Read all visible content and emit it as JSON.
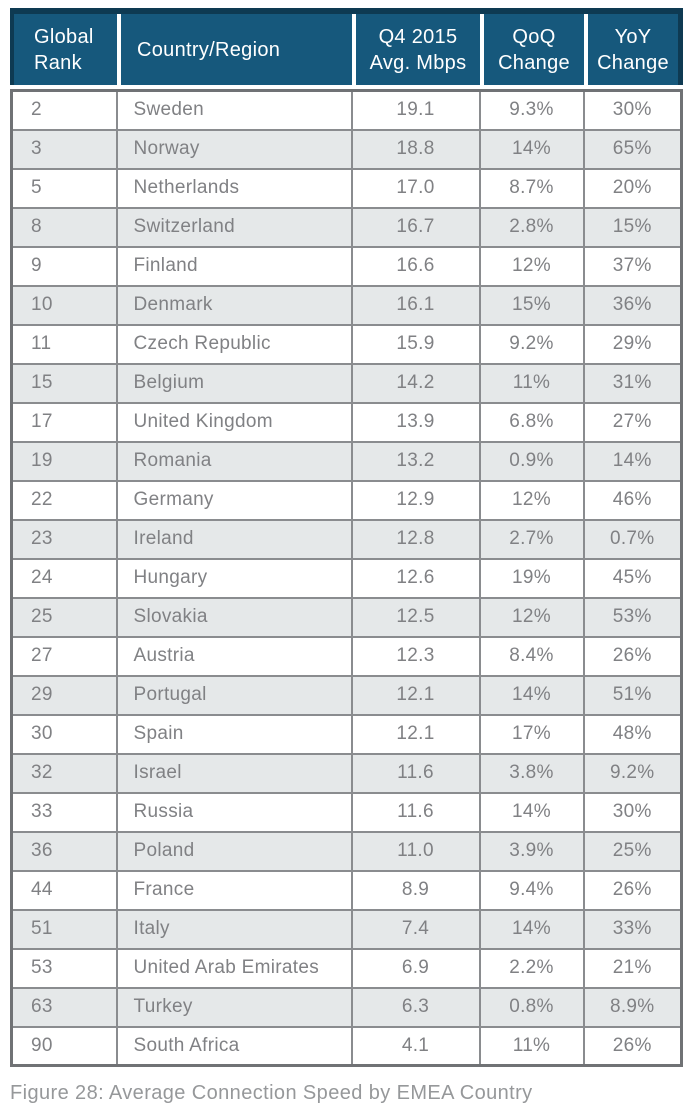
{
  "chart_data": {
    "type": "table",
    "title": "Figure 28: Average Connection Speed by EMEA Country",
    "columns": [
      "Global Rank",
      "Country/Region",
      "Q4 2015 Avg. Mbps",
      "QoQ Change",
      "YoY Change"
    ],
    "col_aligns": [
      "left",
      "left",
      "center",
      "center",
      "center"
    ],
    "rows": [
      [
        "2",
        "Sweden",
        "19.1",
        "9.3%",
        "30%"
      ],
      [
        "3",
        "Norway",
        "18.8",
        "14%",
        "65%"
      ],
      [
        "5",
        "Netherlands",
        "17.0",
        "8.7%",
        "20%"
      ],
      [
        "8",
        "Switzerland",
        "16.7",
        "2.8%",
        "15%"
      ],
      [
        "9",
        "Finland",
        "16.6",
        "12%",
        "37%"
      ],
      [
        "10",
        "Denmark",
        "16.1",
        "15%",
        "36%"
      ],
      [
        "11",
        "Czech Republic",
        "15.9",
        "9.2%",
        "29%"
      ],
      [
        "15",
        "Belgium",
        "14.2",
        "11%",
        "31%"
      ],
      [
        "17",
        "United Kingdom",
        "13.9",
        "6.8%",
        "27%"
      ],
      [
        "19",
        "Romania",
        "13.2",
        "0.9%",
        "14%"
      ],
      [
        "22",
        "Germany",
        "12.9",
        "12%",
        "46%"
      ],
      [
        "23",
        "Ireland",
        "12.8",
        "2.7%",
        "0.7%"
      ],
      [
        "24",
        "Hungary",
        "12.6",
        "19%",
        "45%"
      ],
      [
        "25",
        "Slovakia",
        "12.5",
        "12%",
        "53%"
      ],
      [
        "27",
        "Austria",
        "12.3",
        "8.4%",
        "26%"
      ],
      [
        "29",
        "Portugal",
        "12.1",
        "14%",
        "51%"
      ],
      [
        "30",
        "Spain",
        "12.1",
        "17%",
        "48%"
      ],
      [
        "32",
        "Israel",
        "11.6",
        "3.8%",
        "9.2%"
      ],
      [
        "33",
        "Russia",
        "11.6",
        "14%",
        "30%"
      ],
      [
        "36",
        "Poland",
        "11.0",
        "3.9%",
        "25%"
      ],
      [
        "44",
        "France",
        "8.9",
        "9.4%",
        "26%"
      ],
      [
        "51",
        "Italy",
        "7.4",
        "14%",
        "33%"
      ],
      [
        "53",
        "United Arab Emirates",
        "6.9",
        "2.2%",
        "21%"
      ],
      [
        "63",
        "Turkey",
        "6.3",
        "0.8%",
        "8.9%"
      ],
      [
        "90",
        "South Africa",
        "4.1",
        "11%",
        "26%"
      ]
    ],
    "layout": {
      "striped": true,
      "first_data_row_background": "white",
      "header_position": "top"
    }
  },
  "colors": {
    "header_bg": "#16587c",
    "header_outline": "#0e3a52",
    "header_text": "#ffffff",
    "row_bg": "#ffffff",
    "row_alt_bg": "#e5e8e9",
    "grid_border": "#8a8c8f",
    "outer_border": "#707275",
    "cell_text": "#808184",
    "caption_text": "#96989a"
  }
}
